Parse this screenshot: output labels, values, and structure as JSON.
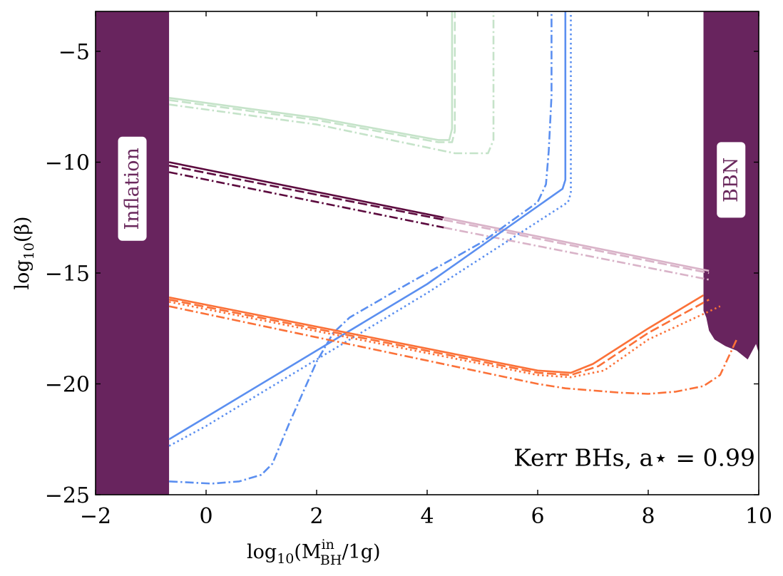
{
  "chart_data": {
    "type": "line",
    "title": "",
    "xlabel": "log10(M_BH^in/1g)",
    "ylabel": "log10(β)",
    "xlabel_parts": {
      "main": "log",
      "sub1": "10",
      "open": "(M",
      "sup": "in",
      "sub2": "BH",
      "close": "/1g)"
    },
    "ylabel_parts": {
      "main": "log",
      "sub": "10",
      "rest": "(β)"
    },
    "xlim": [
      -2,
      10
    ],
    "ylim": [
      -25,
      -3.2
    ],
    "xticks": [
      -2,
      0,
      2,
      4,
      6,
      8,
      10
    ],
    "yticks": [
      -5,
      -10,
      -15,
      -20,
      -25
    ],
    "xtick_labels": [
      "−2",
      "0",
      "2",
      "4",
      "6",
      "8",
      "10"
    ],
    "ytick_labels": [
      "−5",
      "−10",
      "−15",
      "−20",
      "−25"
    ],
    "grid": false,
    "annotation": "Kerr BHs, a⋆ = 0.99",
    "regions": [
      {
        "label": "Inflation",
        "color": "#68245e",
        "x": [
          -2,
          -0.67
        ]
      },
      {
        "label": "BBN",
        "color": "#68245e",
        "x": [
          9.0,
          10
        ]
      }
    ],
    "colors": {
      "purple": "#5c0a3e",
      "purple_light": "#d9b3c8",
      "green_light": "#c5e3c9",
      "blue": "#5b8ff0",
      "orange": "#fb7138"
    },
    "series": [
      {
        "group": "green",
        "style": "solid",
        "color": "#c5e3c9",
        "x": [
          -0.67,
          2,
          4.2,
          4.4,
          4.45,
          4.45
        ],
        "y": [
          -7.1,
          -8.0,
          -9.0,
          -9.0,
          -8.5,
          -3.2
        ]
      },
      {
        "group": "green",
        "style": "dashed",
        "color": "#c5e3c9",
        "x": [
          -0.67,
          2,
          4.2,
          4.45,
          4.5,
          4.5
        ],
        "y": [
          -7.2,
          -8.1,
          -9.1,
          -9.1,
          -8.6,
          -3.2
        ]
      },
      {
        "group": "green",
        "style": "dashdot",
        "color": "#c5e3c9",
        "x": [
          -0.67,
          2,
          4.5,
          5.1,
          5.2,
          5.2
        ],
        "y": [
          -7.4,
          -8.3,
          -9.6,
          -9.6,
          -9.0,
          -3.2
        ]
      },
      {
        "group": "purple",
        "style": "solid",
        "color": "#5c0a3e",
        "x": [
          -0.67,
          4.3
        ],
        "y": [
          -10.0,
          -12.5
        ]
      },
      {
        "group": "purple",
        "style": "dashed",
        "color": "#5c0a3e",
        "x": [
          -0.67,
          4.3
        ],
        "y": [
          -10.15,
          -12.6
        ]
      },
      {
        "group": "purple",
        "style": "dashdot",
        "color": "#5c0a3e",
        "x": [
          -0.67,
          4.3
        ],
        "y": [
          -10.45,
          -12.95
        ]
      },
      {
        "group": "purple-faint",
        "style": "solid",
        "color": "#d9b3c8",
        "x": [
          4.3,
          9.1
        ],
        "y": [
          -12.5,
          -14.9
        ]
      },
      {
        "group": "purple-faint",
        "style": "dashed",
        "color": "#d9b3c8",
        "x": [
          4.3,
          9.1
        ],
        "y": [
          -12.6,
          -15.0
        ]
      },
      {
        "group": "purple-faint",
        "style": "dashdot",
        "color": "#d9b3c8",
        "x": [
          4.3,
          9.1
        ],
        "y": [
          -12.95,
          -15.3
        ]
      },
      {
        "group": "blue",
        "style": "solid",
        "color": "#5b8ff0",
        "x": [
          -0.67,
          0,
          2,
          4,
          6.45,
          6.5,
          6.5
        ],
        "y": [
          -22.5,
          -21.5,
          -18.5,
          -15.5,
          -11.2,
          -10.8,
          -3.2
        ]
      },
      {
        "group": "blue",
        "style": "dotted",
        "color": "#5b8ff0",
        "x": [
          -0.67,
          0,
          2,
          4,
          6.55,
          6.6,
          6.6
        ],
        "y": [
          -22.8,
          -21.9,
          -18.9,
          -15.9,
          -11.8,
          -11.4,
          -3.2
        ]
      },
      {
        "group": "blue",
        "style": "dashdot",
        "color": "#5b8ff0",
        "x": [
          -0.67,
          0.1,
          0.6,
          1.0,
          1.2,
          1.5,
          2.0,
          2.3,
          2.6,
          3.5,
          5,
          6.0,
          6.15,
          6.2,
          6.25,
          6.25
        ],
        "y": [
          -24.4,
          -24.5,
          -24.4,
          -24.1,
          -23.6,
          -21.8,
          -19.0,
          -17.7,
          -17.0,
          -15.7,
          -13.6,
          -11.8,
          -11.0,
          -9.5,
          -7.0,
          -3.2
        ]
      },
      {
        "group": "orange",
        "style": "solid",
        "color": "#fb7138",
        "x": [
          -0.67,
          6.0,
          6.6,
          7.0,
          8.0,
          9.0
        ],
        "y": [
          -16.1,
          -19.4,
          -19.5,
          -19.1,
          -17.5,
          -16.0
        ]
      },
      {
        "group": "orange",
        "style": "dashed",
        "color": "#fb7138",
        "x": [
          -0.67,
          6.0,
          6.6,
          7.1,
          8.0,
          9.1
        ],
        "y": [
          -16.2,
          -19.5,
          -19.6,
          -19.2,
          -17.7,
          -16.2
        ]
      },
      {
        "group": "orange",
        "style": "dotted",
        "color": "#fb7138",
        "x": [
          -0.67,
          6.0,
          6.6,
          7.2,
          8.0,
          9.3
        ],
        "y": [
          -16.3,
          -19.6,
          -19.7,
          -19.4,
          -18.0,
          -16.5
        ]
      },
      {
        "group": "orange",
        "style": "dashdot",
        "color": "#fb7138",
        "x": [
          -0.67,
          6.0,
          6.5,
          7.5,
          8.0,
          8.5,
          9.0,
          9.3,
          9.6
        ],
        "y": [
          -16.5,
          -20.0,
          -20.2,
          -20.4,
          -20.45,
          -20.35,
          -20.1,
          -19.6,
          -18.0
        ]
      }
    ]
  }
}
